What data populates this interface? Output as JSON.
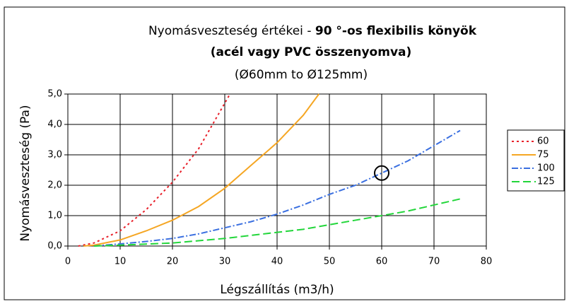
{
  "chart_data": {
    "type": "line",
    "title": [
      "Nyomásveszteség értékei - ",
      "90 °-os  flexibilis könyök",
      "(acél vagy PVC összenyomva)"
    ],
    "subtitle": "(Ø60mm to Ø125mm)",
    "x_label": "Légszállítás (m3/h)",
    "y_label": "Nyomásveszteség  (Pa)",
    "xlim": [
      0,
      80
    ],
    "xticks": [
      0,
      10,
      20,
      30,
      40,
      50,
      60,
      70,
      80
    ],
    "ylim": [
      0,
      5
    ],
    "yticks": [
      {
        "value": 0,
        "label": "0,0"
      },
      {
        "value": 1,
        "label": "1,0"
      },
      {
        "value": 2,
        "label": "2,0"
      },
      {
        "value": 3,
        "label": "3,0"
      },
      {
        "value": 4,
        "label": "4,0"
      },
      {
        "value": 5,
        "label": "5,0"
      }
    ],
    "grid": true,
    "legend": "right",
    "series": [
      {
        "name": "60",
        "color": "#e8202a",
        "dash": "3,4",
        "x": [
          2,
          5,
          10,
          15,
          20,
          25,
          31
        ],
        "values": [
          0,
          0.1,
          0.5,
          1.2,
          2.1,
          3.2,
          5.0
        ]
      },
      {
        "name": "75",
        "color": "#f5a623",
        "dash": "none",
        "x": [
          3,
          5,
          10,
          15,
          20,
          25,
          30,
          35,
          40,
          45,
          48
        ],
        "values": [
          0,
          0.03,
          0.2,
          0.5,
          0.85,
          1.3,
          1.9,
          2.65,
          3.4,
          4.3,
          5.0
        ]
      },
      {
        "name": "100",
        "color": "#3a6fe0",
        "dash": "9,3,2,3",
        "x": [
          5,
          10,
          15,
          20,
          25,
          30,
          35,
          40,
          45,
          50,
          55,
          60,
          65,
          70,
          75
        ],
        "values": [
          0,
          0.07,
          0.15,
          0.25,
          0.4,
          0.6,
          0.8,
          1.05,
          1.35,
          1.7,
          2.0,
          2.4,
          2.8,
          3.3,
          3.8
        ]
      },
      {
        "name": "125",
        "color": "#22d63a",
        "dash": "11,5",
        "x": [
          5,
          10,
          20,
          30,
          35,
          40,
          45,
          50,
          55,
          60,
          65,
          70,
          75
        ],
        "values": [
          0,
          0.03,
          0.1,
          0.25,
          0.35,
          0.45,
          0.55,
          0.7,
          0.85,
          1.0,
          1.15,
          1.35,
          1.55
        ]
      }
    ],
    "highlight": {
      "x": 60,
      "y": 2.4
    }
  }
}
